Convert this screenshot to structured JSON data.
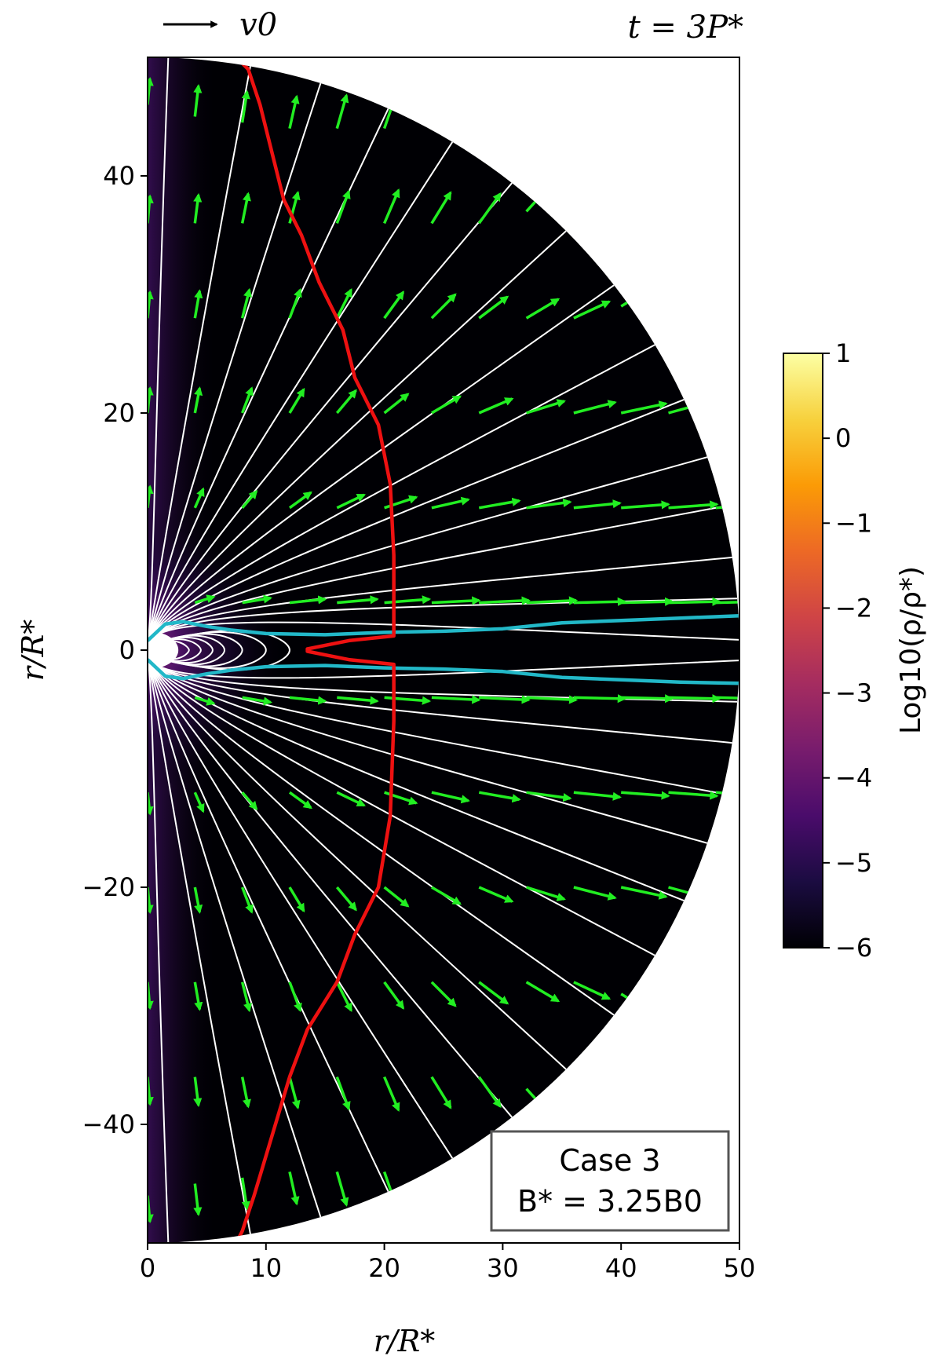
{
  "chart_data": {
    "type": "heatmap",
    "title": "",
    "annotations": {
      "time": "t = 3P*",
      "velocity_key": "v0",
      "case_title": "Case 3",
      "case_field": "B* = 3.25B0"
    },
    "xlabel": "r/R*",
    "ylabel": "r/R*",
    "xlim": [
      0,
      50
    ],
    "ylim": [
      -50,
      50
    ],
    "x_ticks": [
      0,
      10,
      20,
      30,
      40,
      50
    ],
    "x_tick_labels": [
      "0",
      "10",
      "20",
      "30",
      "40",
      "50"
    ],
    "y_ticks": [
      40,
      20,
      0,
      -20,
      -40
    ],
    "y_tick_labels": [
      "40",
      "20",
      "0",
      "−20",
      "−40"
    ],
    "colorbar": {
      "label": "Log10(ρ/ρ*)",
      "range": [
        -6,
        1
      ],
      "ticks": [
        1,
        0,
        -1,
        -2,
        -3,
        -4,
        -5,
        -6
      ],
      "tick_labels": [
        "1",
        "0",
        "−1",
        "−2",
        "−3",
        "−4",
        "−5",
        "−6"
      ],
      "colors": [
        "#000004",
        "#1b0c41",
        "#4a0c6b",
        "#781c6d",
        "#a52c60",
        "#cf4446",
        "#ed6925",
        "#fb9b06",
        "#f7d13d",
        "#fcffa4"
      ]
    },
    "red_contour": [
      [
        7.5,
        50
      ],
      [
        8.5,
        49
      ],
      [
        9.5,
        46
      ],
      [
        10.5,
        42
      ],
      [
        11.5,
        38
      ],
      [
        13,
        35
      ],
      [
        14.5,
        31
      ],
      [
        16.5,
        27
      ],
      [
        17.5,
        23
      ],
      [
        19.5,
        19
      ],
      [
        20.5,
        14
      ],
      [
        20.8,
        8
      ],
      [
        20.8,
        1.2
      ],
      [
        17,
        0.8
      ],
      [
        15,
        0.4
      ],
      [
        13.5,
        0.1
      ],
      [
        13.5,
        -0.1
      ],
      [
        15,
        -0.4
      ],
      [
        17,
        -0.8
      ],
      [
        20.8,
        -1.2
      ],
      [
        20.8,
        -6
      ],
      [
        20.5,
        -14
      ],
      [
        19.5,
        -20
      ],
      [
        17.5,
        -24
      ],
      [
        16,
        -28
      ],
      [
        13.5,
        -32
      ],
      [
        12,
        -36
      ],
      [
        10.5,
        -41
      ],
      [
        9,
        -46
      ],
      [
        8,
        -49
      ],
      [
        7.5,
        -50
      ]
    ],
    "cyan_contours": [
      [
        [
          0,
          0.8
        ],
        [
          1.5,
          2.2
        ],
        [
          3,
          2.4
        ],
        [
          5,
          2.0
        ],
        [
          7,
          1.7
        ],
        [
          10,
          1.4
        ],
        [
          15,
          1.3
        ],
        [
          20,
          1.5
        ],
        [
          25,
          1.6
        ],
        [
          30,
          1.8
        ],
        [
          35,
          2.3
        ],
        [
          40,
          2.5
        ],
        [
          45,
          2.7
        ],
        [
          50,
          2.9
        ]
      ],
      [
        [
          0,
          -0.8
        ],
        [
          1.5,
          -2.2
        ],
        [
          3,
          -2.4
        ],
        [
          5,
          -2.0
        ],
        [
          7,
          -1.7
        ],
        [
          10,
          -1.4
        ],
        [
          15,
          -1.3
        ],
        [
          20,
          -1.5
        ],
        [
          25,
          -1.6
        ],
        [
          30,
          -1.8
        ],
        [
          35,
          -2.3
        ],
        [
          40,
          -2.5
        ],
        [
          45,
          -2.7
        ],
        [
          50,
          -2.8
        ]
      ]
    ],
    "field_line_angles_deg": [
      88,
      80,
      73,
      66,
      59,
      52,
      45,
      38,
      31,
      25,
      19,
      14,
      9,
      5,
      1
    ],
    "closed_loop_extents": [
      2.5,
      3.5,
      4.5,
      5.5,
      6.5,
      8.0,
      10.0,
      12.0
    ],
    "velocity_key_length": 4.5,
    "velocity_vectors": [
      [
        0,
        46,
        0.2,
        2.2
      ],
      [
        4,
        45,
        0.3,
        2.6
      ],
      [
        8,
        44.5,
        0.4,
        2.6
      ],
      [
        12,
        44,
        0.6,
        2.7
      ],
      [
        16,
        44,
        0.8,
        2.8
      ],
      [
        20,
        44,
        1.0,
        2.9
      ],
      [
        24,
        45,
        1.2,
        3.0
      ],
      [
        0,
        36,
        0.2,
        2.3
      ],
      [
        4,
        36,
        0.3,
        2.4
      ],
      [
        8,
        36,
        0.5,
        2.5
      ],
      [
        12,
        36,
        0.7,
        2.6
      ],
      [
        16,
        36,
        1.0,
        2.7
      ],
      [
        20,
        36,
        1.2,
        2.8
      ],
      [
        24,
        36,
        1.6,
        2.6
      ],
      [
        28,
        36,
        1.8,
        2.5
      ],
      [
        32,
        37,
        2.2,
        2.4
      ],
      [
        0,
        28,
        0.2,
        2.2
      ],
      [
        4,
        28,
        0.4,
        2.3
      ],
      [
        8,
        28,
        0.6,
        2.4
      ],
      [
        12,
        28,
        0.9,
        2.4
      ],
      [
        16,
        28,
        1.2,
        2.4
      ],
      [
        20,
        28,
        1.6,
        2.2
      ],
      [
        24,
        28,
        2.0,
        2.0
      ],
      [
        28,
        28,
        2.4,
        1.8
      ],
      [
        32,
        28,
        2.7,
        1.6
      ],
      [
        36,
        28,
        3.0,
        1.4
      ],
      [
        40,
        29,
        3.3,
        2.0
      ],
      [
        0,
        20,
        0.2,
        2.1
      ],
      [
        4,
        20,
        0.4,
        2.1
      ],
      [
        8,
        20,
        0.8,
        2.1
      ],
      [
        12,
        20,
        1.2,
        2.0
      ],
      [
        16,
        20,
        1.6,
        1.9
      ],
      [
        20,
        20,
        2.0,
        1.6
      ],
      [
        24,
        20,
        2.4,
        1.4
      ],
      [
        28,
        20,
        2.8,
        1.2
      ],
      [
        32,
        20,
        3.2,
        1.0
      ],
      [
        36,
        20,
        3.5,
        0.9
      ],
      [
        40,
        20,
        3.8,
        0.8
      ],
      [
        44,
        20,
        4.0,
        1.1
      ],
      [
        0,
        12,
        0.2,
        1.8
      ],
      [
        4,
        12,
        0.7,
        1.6
      ],
      [
        8,
        12,
        1.2,
        1.4
      ],
      [
        12,
        12,
        1.8,
        1.3
      ],
      [
        16,
        12,
        2.3,
        1.1
      ],
      [
        20,
        12,
        2.7,
        0.9
      ],
      [
        24,
        12,
        3.1,
        0.7
      ],
      [
        28,
        12,
        3.4,
        0.6
      ],
      [
        32,
        12,
        3.7,
        0.5
      ],
      [
        36,
        12,
        3.9,
        0.4
      ],
      [
        40,
        12,
        4.0,
        0.3
      ],
      [
        44,
        12,
        4.1,
        0.3
      ],
      [
        48,
        12,
        4.2,
        0.3
      ],
      [
        4,
        4,
        1.6,
        0.5
      ],
      [
        8,
        4,
        2.4,
        0.4
      ],
      [
        12,
        4,
        3.0,
        0.3
      ],
      [
        16,
        4,
        3.4,
        0.3
      ],
      [
        20,
        4,
        3.8,
        0.3
      ],
      [
        24,
        4,
        4.0,
        0.2
      ],
      [
        28,
        4,
        4.2,
        0.2
      ],
      [
        32,
        4,
        4.2,
        0.2
      ],
      [
        36,
        4,
        4.3,
        0.1
      ],
      [
        40,
        4,
        4.3,
        0.1
      ],
      [
        44,
        4,
        4.3,
        0.1
      ],
      [
        48,
        4,
        4.3,
        0.1
      ],
      [
        4,
        -4,
        1.6,
        -0.5
      ],
      [
        8,
        -4,
        2.4,
        -0.4
      ],
      [
        12,
        -4,
        3.0,
        -0.3
      ],
      [
        16,
        -4,
        3.4,
        -0.3
      ],
      [
        20,
        -4,
        3.8,
        -0.3
      ],
      [
        24,
        -4,
        4.0,
        -0.2
      ],
      [
        28,
        -4,
        4.2,
        -0.2
      ],
      [
        32,
        -4,
        4.2,
        -0.2
      ],
      [
        36,
        -4,
        4.3,
        -0.1
      ],
      [
        40,
        -4,
        4.3,
        -0.1
      ],
      [
        44,
        -4,
        4.3,
        -0.1
      ],
      [
        48,
        -4,
        4.3,
        -0.1
      ],
      [
        0,
        -12,
        0.2,
        -1.8
      ],
      [
        4,
        -12,
        0.7,
        -1.6
      ],
      [
        8,
        -12,
        1.2,
        -1.4
      ],
      [
        12,
        -12,
        1.8,
        -1.3
      ],
      [
        16,
        -12,
        2.3,
        -1.1
      ],
      [
        20,
        -12,
        2.7,
        -0.9
      ],
      [
        24,
        -12,
        3.1,
        -0.7
      ],
      [
        28,
        -12,
        3.4,
        -0.6
      ],
      [
        32,
        -12,
        3.7,
        -0.5
      ],
      [
        36,
        -12,
        3.9,
        -0.4
      ],
      [
        40,
        -12,
        4.0,
        -0.3
      ],
      [
        44,
        -12,
        4.1,
        -0.3
      ],
      [
        48,
        -12,
        4.2,
        -0.3
      ],
      [
        0,
        -20,
        0.2,
        -2.1
      ],
      [
        4,
        -20,
        0.4,
        -2.1
      ],
      [
        8,
        -20,
        0.8,
        -2.1
      ],
      [
        12,
        -20,
        1.2,
        -2.0
      ],
      [
        16,
        -20,
        1.6,
        -1.9
      ],
      [
        20,
        -20,
        2.0,
        -1.6
      ],
      [
        24,
        -20,
        2.4,
        -1.4
      ],
      [
        28,
        -20,
        2.8,
        -1.2
      ],
      [
        32,
        -20,
        3.2,
        -1.0
      ],
      [
        36,
        -20,
        3.5,
        -0.9
      ],
      [
        40,
        -20,
        3.8,
        -0.8
      ],
      [
        44,
        -20,
        4.0,
        -1.1
      ],
      [
        0,
        -28,
        0.2,
        -2.2
      ],
      [
        4,
        -28,
        0.4,
        -2.3
      ],
      [
        8,
        -28,
        0.6,
        -2.4
      ],
      [
        12,
        -28,
        0.9,
        -2.4
      ],
      [
        16,
        -28,
        1.2,
        -2.4
      ],
      [
        20,
        -28,
        1.6,
        -2.2
      ],
      [
        24,
        -28,
        2.0,
        -2.0
      ],
      [
        28,
        -28,
        2.4,
        -1.8
      ],
      [
        32,
        -28,
        2.7,
        -1.6
      ],
      [
        36,
        -28,
        3.0,
        -1.4
      ],
      [
        40,
        -29,
        3.3,
        -2.0
      ],
      [
        0,
        -36,
        0.2,
        -2.3
      ],
      [
        4,
        -36,
        0.3,
        -2.4
      ],
      [
        8,
        -36,
        0.5,
        -2.5
      ],
      [
        12,
        -36,
        0.7,
        -2.6
      ],
      [
        16,
        -36,
        1.0,
        -2.7
      ],
      [
        20,
        -36,
        1.2,
        -2.8
      ],
      [
        24,
        -36,
        1.6,
        -2.6
      ],
      [
        28,
        -36,
        1.8,
        -2.5
      ],
      [
        32,
        -37,
        2.2,
        -2.4
      ],
      [
        0,
        -46,
        0.2,
        -2.2
      ],
      [
        4,
        -45,
        0.3,
        -2.6
      ],
      [
        8,
        -44.5,
        0.4,
        -2.6
      ],
      [
        12,
        -44,
        0.6,
        -2.7
      ],
      [
        16,
        -44,
        0.8,
        -2.8
      ],
      [
        20,
        -44,
        1.0,
        -2.9
      ],
      [
        24,
        -45,
        1.2,
        -3.0
      ]
    ]
  }
}
